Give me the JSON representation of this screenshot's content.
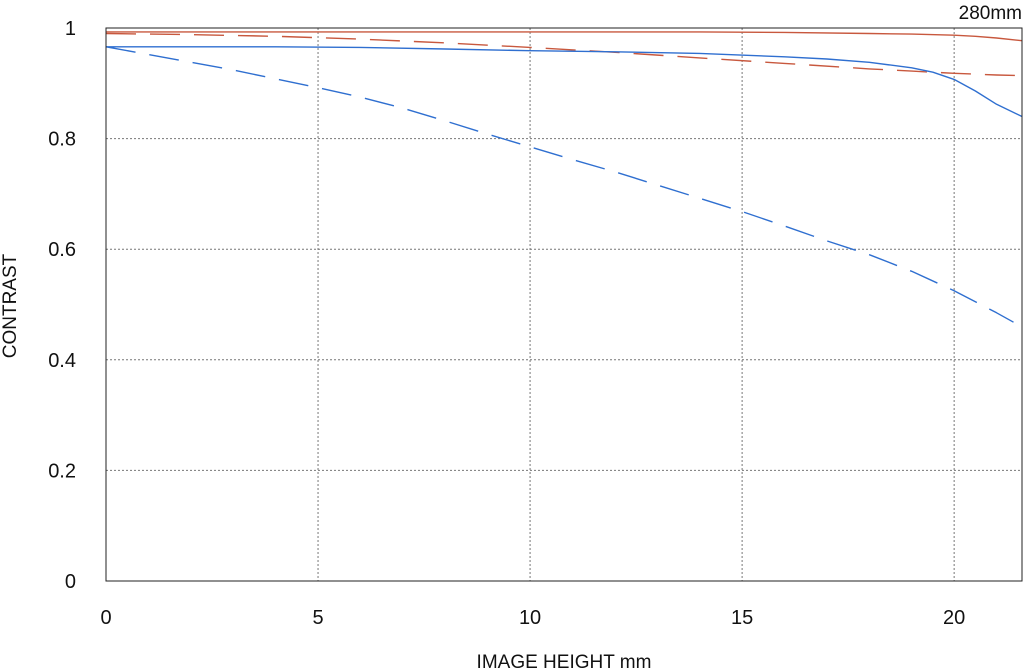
{
  "chart_data": {
    "type": "line",
    "title": "",
    "corner_label": "280mm",
    "xlabel": "IMAGE HEIGHT  mm",
    "ylabel": "CONTRAST",
    "xlim": [
      0,
      21.6
    ],
    "ylim": [
      0,
      1
    ],
    "x_ticks": [
      0,
      5,
      10,
      15,
      20
    ],
    "x_tick_labels": [
      "0",
      "5",
      "10",
      "15",
      "20"
    ],
    "y_ticks": [
      0,
      0.2,
      0.4,
      0.6,
      0.8,
      1
    ],
    "y_tick_labels": [
      "0",
      "0.2",
      "0.4",
      "0.6",
      "0.8",
      "1"
    ],
    "grid": true,
    "legend": "none",
    "series": [
      {
        "color": "#c8583e",
        "style": "solid",
        "x": [
          0,
          2,
          4,
          6,
          8,
          10,
          12,
          14,
          16,
          18,
          19,
          20,
          20.5,
          21,
          21.6
        ],
        "y": [
          0.993,
          0.993,
          0.993,
          0.993,
          0.993,
          0.993,
          0.993,
          0.993,
          0.992,
          0.99,
          0.989,
          0.987,
          0.985,
          0.982,
          0.977
        ]
      },
      {
        "color": "#c8583e",
        "style": "dashed",
        "x": [
          0,
          2,
          4,
          6,
          8,
          10,
          12,
          14,
          16,
          18,
          19,
          20,
          21,
          21.6
        ],
        "y": [
          0.99,
          0.988,
          0.985,
          0.98,
          0.973,
          0.965,
          0.956,
          0.946,
          0.936,
          0.926,
          0.922,
          0.918,
          0.915,
          0.914
        ]
      },
      {
        "color": "#2f6fd0",
        "style": "solid",
        "x": [
          0,
          2,
          4,
          6,
          8,
          10,
          12,
          14,
          16,
          17,
          18,
          19,
          19.5,
          20,
          20.5,
          21,
          21.6
        ],
        "y": [
          0.966,
          0.966,
          0.966,
          0.965,
          0.962,
          0.959,
          0.957,
          0.954,
          0.948,
          0.944,
          0.938,
          0.928,
          0.92,
          0.907,
          0.886,
          0.862,
          0.84
        ]
      },
      {
        "color": "#2f6fd0",
        "style": "dashed",
        "x": [
          0,
          1,
          2,
          3,
          4,
          5,
          6,
          7,
          8,
          9,
          10,
          11,
          12,
          13,
          14,
          15,
          16,
          17,
          18,
          19,
          20,
          21,
          21.4
        ],
        "y": [
          0.966,
          0.952,
          0.938,
          0.924,
          0.908,
          0.892,
          0.875,
          0.855,
          0.832,
          0.808,
          0.785,
          0.762,
          0.74,
          0.716,
          0.692,
          0.668,
          0.642,
          0.615,
          0.59,
          0.56,
          0.525,
          0.485,
          0.468
        ]
      }
    ]
  }
}
